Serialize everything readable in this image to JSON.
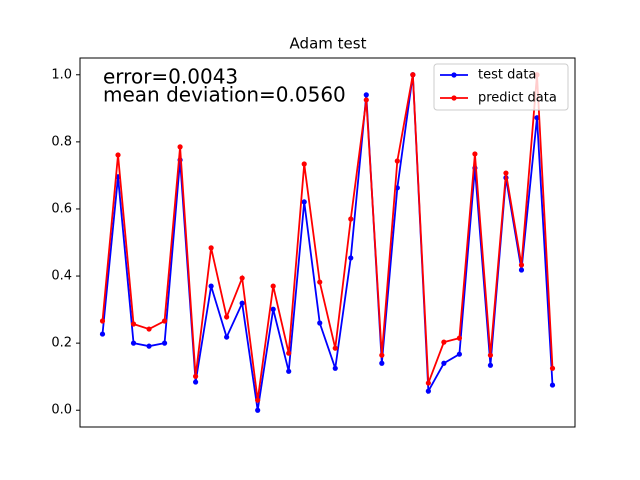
{
  "chart_data": {
    "type": "line",
    "title": "Adam test",
    "annotations": [
      "error=0.0043",
      "mean deviation=0.0560"
    ],
    "annotation_color": "#ff0000",
    "x": [
      0,
      1,
      2,
      3,
      4,
      5,
      6,
      7,
      8,
      9,
      10,
      11,
      12,
      13,
      14,
      15,
      16,
      17,
      18,
      19,
      20,
      21,
      22,
      23,
      24,
      25,
      26,
      27,
      28,
      29
    ],
    "series": [
      {
        "name": "test data",
        "color": "#0000ff",
        "values": [
          0.227,
          0.696,
          0.2,
          0.191,
          0.2,
          0.746,
          0.084,
          0.37,
          0.218,
          0.319,
          0.0,
          0.301,
          0.116,
          0.621,
          0.26,
          0.125,
          0.454,
          0.94,
          0.14,
          0.663,
          1.0,
          0.057,
          0.14,
          0.167,
          0.722,
          0.134,
          0.693,
          0.418,
          0.872,
          0.075
        ]
      },
      {
        "name": "predict data",
        "color": "#ff0000",
        "values": [
          0.266,
          0.761,
          0.257,
          0.242,
          0.266,
          0.785,
          0.101,
          0.484,
          0.278,
          0.394,
          0.03,
          0.37,
          0.17,
          0.734,
          0.382,
          0.185,
          0.57,
          0.925,
          0.164,
          0.743,
          1.0,
          0.081,
          0.203,
          0.215,
          0.764,
          0.164,
          0.707,
          0.433,
          1.0,
          0.125
        ]
      }
    ],
    "xlim": [
      -1.45,
      30.45
    ],
    "ylim": [
      -0.05,
      1.05
    ],
    "yticks": [
      {
        "value": 0,
        "label": "0.0"
      },
      0.2,
      0.4,
      0.6,
      0.8,
      {
        "value": 1,
        "label": "1.0"
      }
    ],
    "legend": "upper right"
  }
}
